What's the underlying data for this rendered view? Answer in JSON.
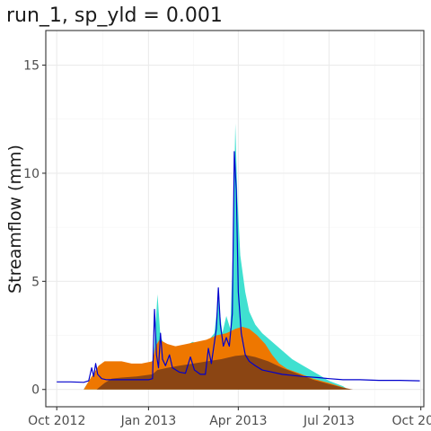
{
  "chart_data": {
    "type": "area",
    "title": "run_1, sp_yld = 0.001",
    "xlabel": "",
    "ylabel": "Streamflow (mm)",
    "ylim": [
      -0.8,
      16.6
    ],
    "xlim": [
      "2012-09-20",
      "2013-10-04"
    ],
    "grid": true,
    "legend": "none",
    "y_ticks": [
      0,
      5,
      10,
      15
    ],
    "x_ticks": [
      {
        "date": "2012-10-01",
        "label": "Oct 2012"
      },
      {
        "date": "2013-01-01",
        "label": "Jan 2013"
      },
      {
        "date": "2013-04-01",
        "label": "Apr 2013"
      },
      {
        "date": "2013-07-01",
        "label": "Jul 2013"
      },
      {
        "date": "2013-10-01",
        "label": "Oct 2013"
      }
    ],
    "series": [
      {
        "color": "#40E0D0",
        "points": [
          [
            "2012-10-28",
            0
          ],
          [
            "2012-11-05",
            0.6
          ],
          [
            "2012-11-12",
            0.8
          ],
          [
            "2012-11-20",
            0.9
          ],
          [
            "2012-12-01",
            0.9
          ],
          [
            "2012-12-15",
            0.8
          ],
          [
            "2012-12-28",
            0.9
          ],
          [
            "2013-01-06",
            1.4
          ],
          [
            "2013-01-10",
            4.4
          ],
          [
            "2013-01-13",
            2.4
          ],
          [
            "2013-01-20",
            1.9
          ],
          [
            "2013-01-28",
            2.0
          ],
          [
            "2013-02-07",
            2.0
          ],
          [
            "2013-02-14",
            2.2
          ],
          [
            "2013-02-22",
            2.1
          ],
          [
            "2013-03-01",
            2.2
          ],
          [
            "2013-03-08",
            2.6
          ],
          [
            "2013-03-12",
            4.2
          ],
          [
            "2013-03-16",
            2.6
          ],
          [
            "2013-03-20",
            3.4
          ],
          [
            "2013-03-24",
            2.8
          ],
          [
            "2013-03-27",
            7.0
          ],
          [
            "2013-03-29",
            12.3
          ],
          [
            "2013-03-31",
            9.0
          ],
          [
            "2013-04-03",
            6.2
          ],
          [
            "2013-04-08",
            4.5
          ],
          [
            "2013-04-12",
            3.6
          ],
          [
            "2013-04-18",
            3.0
          ],
          [
            "2013-04-25",
            2.6
          ],
          [
            "2013-05-05",
            2.2
          ],
          [
            "2013-05-15",
            1.8
          ],
          [
            "2013-05-25",
            1.4
          ],
          [
            "2013-06-05",
            1.1
          ],
          [
            "2013-06-20",
            0.7
          ],
          [
            "2013-07-01",
            0.4
          ],
          [
            "2013-07-15",
            0.15
          ],
          [
            "2013-07-20",
            0
          ]
        ]
      },
      {
        "color": "#EE7700",
        "points": [
          [
            "2012-10-28",
            0
          ],
          [
            "2012-11-05",
            0.6
          ],
          [
            "2012-11-12",
            1.1
          ],
          [
            "2012-11-18",
            1.3
          ],
          [
            "2012-11-25",
            1.3
          ],
          [
            "2012-12-05",
            1.3
          ],
          [
            "2012-12-15",
            1.2
          ],
          [
            "2012-12-25",
            1.2
          ],
          [
            "2013-01-05",
            1.3
          ],
          [
            "2013-01-08",
            2.0
          ],
          [
            "2013-01-12",
            2.3
          ],
          [
            "2013-01-20",
            2.1
          ],
          [
            "2013-01-28",
            2.0
          ],
          [
            "2013-02-08",
            2.1
          ],
          [
            "2013-02-18",
            2.2
          ],
          [
            "2013-02-28",
            2.3
          ],
          [
            "2013-03-10",
            2.5
          ],
          [
            "2013-03-20",
            2.6
          ],
          [
            "2013-03-29",
            2.8
          ],
          [
            "2013-04-05",
            2.9
          ],
          [
            "2013-04-12",
            2.8
          ],
          [
            "2013-04-20",
            2.5
          ],
          [
            "2013-04-28",
            2.1
          ],
          [
            "2013-05-05",
            1.6
          ],
          [
            "2013-05-12",
            1.2
          ],
          [
            "2013-05-20",
            0.95
          ],
          [
            "2013-06-01",
            0.75
          ],
          [
            "2013-06-15",
            0.5
          ],
          [
            "2013-07-01",
            0.3
          ],
          [
            "2013-07-15",
            0.1
          ],
          [
            "2013-07-22",
            0
          ]
        ]
      },
      {
        "color": "#8B4513",
        "points": [
          [
            "2012-11-10",
            0
          ],
          [
            "2012-11-18",
            0.3
          ],
          [
            "2012-11-25",
            0.5
          ],
          [
            "2012-12-05",
            0.55
          ],
          [
            "2012-12-20",
            0.6
          ],
          [
            "2013-01-05",
            0.7
          ],
          [
            "2013-01-10",
            0.9
          ],
          [
            "2013-01-20",
            1.0
          ],
          [
            "2013-02-01",
            1.1
          ],
          [
            "2013-02-15",
            1.2
          ],
          [
            "2013-03-01",
            1.3
          ],
          [
            "2013-03-15",
            1.4
          ],
          [
            "2013-03-29",
            1.55
          ],
          [
            "2013-04-08",
            1.6
          ],
          [
            "2013-04-18",
            1.5
          ],
          [
            "2013-05-01",
            1.3
          ],
          [
            "2013-05-15",
            1.0
          ],
          [
            "2013-06-01",
            0.7
          ],
          [
            "2013-06-15",
            0.45
          ],
          [
            "2013-07-01",
            0.25
          ],
          [
            "2013-07-15",
            0.08
          ],
          [
            "2013-07-25",
            0
          ]
        ]
      },
      {
        "color": "#0000CD",
        "points": [
          [
            "2012-10-01",
            0.35
          ],
          [
            "2012-10-15",
            0.35
          ],
          [
            "2012-10-28",
            0.33
          ],
          [
            "2012-11-02",
            0.4
          ],
          [
            "2012-11-05",
            1.0
          ],
          [
            "2012-11-07",
            0.6
          ],
          [
            "2012-11-09",
            1.2
          ],
          [
            "2012-11-11",
            0.7
          ],
          [
            "2012-11-15",
            0.5
          ],
          [
            "2012-11-20",
            0.45
          ],
          [
            "2012-12-01",
            0.45
          ],
          [
            "2012-12-15",
            0.45
          ],
          [
            "2013-01-01",
            0.45
          ],
          [
            "2013-01-05",
            0.5
          ],
          [
            "2013-01-07",
            3.7
          ],
          [
            "2013-01-09",
            1.6
          ],
          [
            "2013-01-11",
            1.0
          ],
          [
            "2013-01-13",
            2.6
          ],
          [
            "2013-01-15",
            1.4
          ],
          [
            "2013-01-18",
            1.1
          ],
          [
            "2013-01-22",
            1.6
          ],
          [
            "2013-01-25",
            1.0
          ],
          [
            "2013-02-01",
            0.8
          ],
          [
            "2013-02-07",
            0.75
          ],
          [
            "2013-02-12",
            1.5
          ],
          [
            "2013-02-16",
            0.9
          ],
          [
            "2013-02-22",
            0.7
          ],
          [
            "2013-02-27",
            0.7
          ],
          [
            "2013-03-02",
            1.9
          ],
          [
            "2013-03-05",
            1.2
          ],
          [
            "2013-03-10",
            2.8
          ],
          [
            "2013-03-12",
            4.7
          ],
          [
            "2013-03-14",
            3.0
          ],
          [
            "2013-03-17",
            2.0
          ],
          [
            "2013-03-20",
            2.4
          ],
          [
            "2013-03-23",
            2.0
          ],
          [
            "2013-03-26",
            3.5
          ],
          [
            "2013-03-28",
            11.0
          ],
          [
            "2013-03-30",
            9.2
          ],
          [
            "2013-04-01",
            4.5
          ],
          [
            "2013-04-04",
            2.6
          ],
          [
            "2013-04-08",
            1.6
          ],
          [
            "2013-04-12",
            1.3
          ],
          [
            "2013-04-18",
            1.1
          ],
          [
            "2013-04-25",
            0.9
          ],
          [
            "2013-05-05",
            0.8
          ],
          [
            "2013-05-15",
            0.7
          ],
          [
            "2013-05-25",
            0.65
          ],
          [
            "2013-06-05",
            0.6
          ],
          [
            "2013-06-20",
            0.55
          ],
          [
            "2013-07-01",
            0.5
          ],
          [
            "2013-07-15",
            0.45
          ],
          [
            "2013-08-01",
            0.45
          ],
          [
            "2013-08-20",
            0.42
          ],
          [
            "2013-09-10",
            0.42
          ],
          [
            "2013-09-30",
            0.4
          ]
        ]
      }
    ]
  }
}
